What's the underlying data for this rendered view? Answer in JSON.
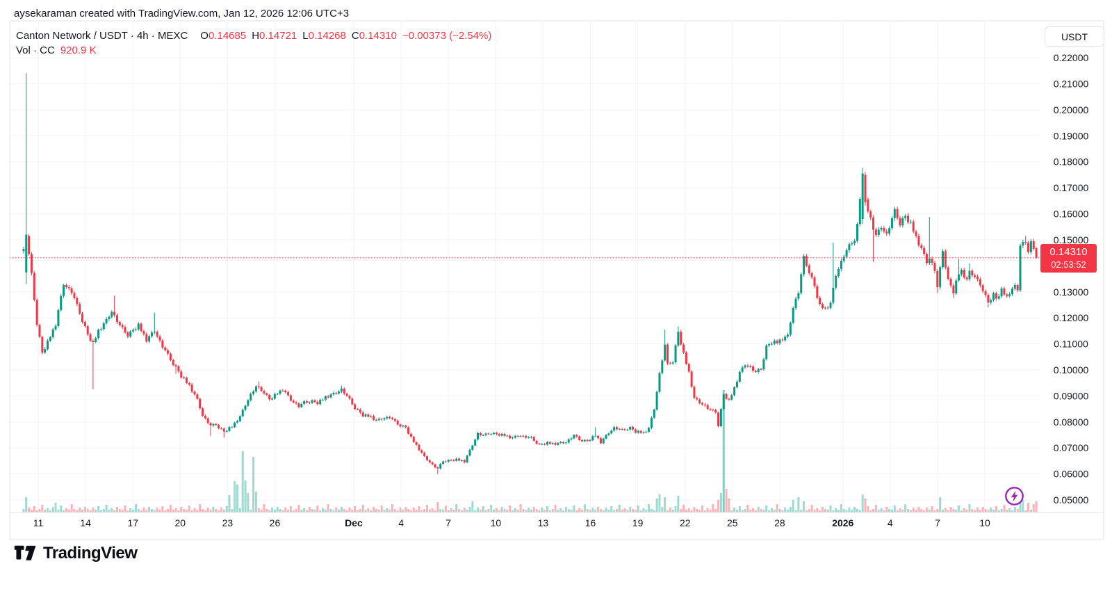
{
  "meta": {
    "creator_line": "aysekaraman created with TradingView.com, Jan 12, 2026 12:06 UTC+3"
  },
  "legend": {
    "symbol": "Canton Network / USDT · 4h · MEXC",
    "o_label": "O",
    "o_value": "0.14685",
    "h_label": "H",
    "h_value": "0.14721",
    "l_label": "L",
    "l_value": "0.14268",
    "c_label": "C",
    "c_value": "0.14310",
    "change": "−0.00373 (−2.54%)",
    "vol_label": "Vol · CC",
    "vol_value": "920.9 K"
  },
  "axis": {
    "currency_label": "USDT"
  },
  "price_line": {
    "value": 0.1431,
    "price": "0.14310",
    "countdown": "02:53:52"
  },
  "logo": {
    "text": "TradingView"
  },
  "colors": {
    "up": "#089981",
    "down": "#f23645",
    "text": "#131722",
    "grid": "#f0f3fa",
    "border": "#e0e3eb",
    "badge": "#f23645",
    "flash": "#9c27b0"
  },
  "chart_data": {
    "type": "candlestick",
    "symbol": "Canton Network / USDT",
    "interval": "4h",
    "exchange": "MEXC",
    "last_candle": {
      "open": 0.14685,
      "high": 0.14721,
      "low": 0.14268,
      "close": 0.1431
    },
    "change": -0.00373,
    "change_pct": -2.54,
    "volume_current": "920.9 K",
    "n": 380,
    "ylim": [
      0.0452,
      0.2342
    ],
    "yticks": [
      {
        "v": 0.22,
        "label": "0.22000"
      },
      {
        "v": 0.21,
        "label": "0.21000"
      },
      {
        "v": 0.2,
        "label": "0.20000"
      },
      {
        "v": 0.19,
        "label": "0.19000"
      },
      {
        "v": 0.18,
        "label": "0.18000"
      },
      {
        "v": 0.17,
        "label": "0.17000"
      },
      {
        "v": 0.16,
        "label": "0.16000"
      },
      {
        "v": 0.15,
        "label": "0.15000"
      },
      {
        "v": 0.13,
        "label": "0.13000"
      },
      {
        "v": 0.12,
        "label": "0.12000"
      },
      {
        "v": 0.11,
        "label": "0.11000"
      },
      {
        "v": 0.1,
        "label": "0.10000"
      },
      {
        "v": 0.09,
        "label": "0.09000"
      },
      {
        "v": 0.08,
        "label": "0.08000"
      },
      {
        "v": 0.07,
        "label": "0.07000"
      },
      {
        "v": 0.06,
        "label": "0.06000"
      },
      {
        "v": 0.05,
        "label": "0.05000"
      }
    ],
    "xticks": [
      {
        "label": "11",
        "f": 0.0277
      },
      {
        "label": "14",
        "f": 0.0736
      },
      {
        "label": "17",
        "f": 0.1196
      },
      {
        "label": "20",
        "f": 0.1655
      },
      {
        "label": "23",
        "f": 0.2115
      },
      {
        "label": "26",
        "f": 0.2574
      },
      {
        "label": "Dec",
        "f": 0.334,
        "bold": true
      },
      {
        "label": "4",
        "f": 0.38
      },
      {
        "label": "7",
        "f": 0.4259
      },
      {
        "label": "10",
        "f": 0.4719
      },
      {
        "label": "13",
        "f": 0.5178
      },
      {
        "label": "16",
        "f": 0.5638
      },
      {
        "label": "19",
        "f": 0.6097
      },
      {
        "label": "22",
        "f": 0.6557
      },
      {
        "label": "25",
        "f": 0.7016
      },
      {
        "label": "28",
        "f": 0.7476
      },
      {
        "label": "2026",
        "f": 0.8089,
        "bold": true
      },
      {
        "label": "4",
        "f": 0.8548
      },
      {
        "label": "7",
        "f": 0.9008
      },
      {
        "label": "10",
        "f": 0.9467
      }
    ],
    "anchors": [
      [
        0,
        0.146
      ],
      [
        1,
        0.152
      ],
      [
        3,
        0.1365
      ],
      [
        5,
        0.118
      ],
      [
        7,
        0.1065
      ],
      [
        9,
        0.1105
      ],
      [
        12,
        0.1175
      ],
      [
        15,
        0.133
      ],
      [
        18,
        0.13
      ],
      [
        21,
        0.122
      ],
      [
        24,
        0.1135
      ],
      [
        26,
        0.11
      ],
      [
        28,
        0.115
      ],
      [
        31,
        0.119
      ],
      [
        33,
        0.1225
      ],
      [
        36,
        0.117
      ],
      [
        39,
        0.1135
      ],
      [
        43,
        0.117
      ],
      [
        46,
        0.1115
      ],
      [
        49,
        0.115
      ],
      [
        52,
        0.109
      ],
      [
        55,
        0.104
      ],
      [
        57,
        0.101
      ],
      [
        59,
        0.0975
      ],
      [
        62,
        0.094
      ],
      [
        65,
        0.0885
      ],
      [
        67,
        0.0825
      ],
      [
        70,
        0.0785
      ],
      [
        72,
        0.079
      ],
      [
        75,
        0.0762
      ],
      [
        78,
        0.0782
      ],
      [
        81,
        0.082
      ],
      [
        83,
        0.0865
      ],
      [
        85,
        0.0905
      ],
      [
        87,
        0.0935
      ],
      [
        90,
        0.0915
      ],
      [
        92,
        0.0885
      ],
      [
        95,
        0.091
      ],
      [
        97,
        0.0925
      ],
      [
        100,
        0.0885
      ],
      [
        103,
        0.086
      ],
      [
        105,
        0.0875
      ],
      [
        108,
        0.088
      ],
      [
        110,
        0.0872
      ],
      [
        113,
        0.0895
      ],
      [
        117,
        0.0912
      ],
      [
        119,
        0.0925
      ],
      [
        122,
        0.0885
      ],
      [
        124,
        0.0855
      ],
      [
        127,
        0.0825
      ],
      [
        130,
        0.082
      ],
      [
        132,
        0.0805
      ],
      [
        135,
        0.0815
      ],
      [
        137,
        0.0818
      ],
      [
        140,
        0.0792
      ],
      [
        143,
        0.0778
      ],
      [
        145,
        0.0738
      ],
      [
        148,
        0.0695
      ],
      [
        150,
        0.0665
      ],
      [
        153,
        0.0635
      ],
      [
        155,
        0.062
      ],
      [
        157,
        0.065
      ],
      [
        160,
        0.0652
      ],
      [
        162,
        0.0655
      ],
      [
        165,
        0.0648
      ],
      [
        167,
        0.069
      ],
      [
        170,
        0.0755
      ],
      [
        172,
        0.0748
      ],
      [
        175,
        0.0758
      ],
      [
        177,
        0.0752
      ],
      [
        180,
        0.0748
      ],
      [
        183,
        0.0738
      ],
      [
        185,
        0.0748
      ],
      [
        188,
        0.0742
      ],
      [
        190,
        0.0738
      ],
      [
        193,
        0.0712
      ],
      [
        196,
        0.0718
      ],
      [
        199,
        0.0716
      ],
      [
        203,
        0.0722
      ],
      [
        206,
        0.0748
      ],
      [
        208,
        0.0732
      ],
      [
        211,
        0.0726
      ],
      [
        214,
        0.0748
      ],
      [
        216,
        0.0722
      ],
      [
        219,
        0.0758
      ],
      [
        221,
        0.0778
      ],
      [
        224,
        0.0768
      ],
      [
        227,
        0.0778
      ],
      [
        229,
        0.0762
      ],
      [
        232,
        0.0758
      ],
      [
        234,
        0.0775
      ],
      [
        236,
        0.085
      ],
      [
        238,
        0.0985
      ],
      [
        240,
        0.1095
      ],
      [
        241,
        0.102
      ],
      [
        243,
        0.1035
      ],
      [
        245,
        0.1145
      ],
      [
        247,
        0.106
      ],
      [
        249,
        0.099
      ],
      [
        251,
        0.089
      ],
      [
        253,
        0.0875
      ],
      [
        255,
        0.0862
      ],
      [
        257,
        0.0845
      ],
      [
        259,
        0.0838
      ],
      [
        260,
        0.0788
      ],
      [
        262,
        0.0905
      ],
      [
        264,
        0.088
      ],
      [
        266,
        0.093
      ],
      [
        268,
        0.099
      ],
      [
        270,
        0.102
      ],
      [
        272,
        0.101
      ],
      [
        274,
        0.099
      ],
      [
        276,
        0.1005
      ],
      [
        278,
        0.109
      ],
      [
        280,
        0.1105
      ],
      [
        282,
        0.1105
      ],
      [
        284,
        0.112
      ],
      [
        286,
        0.113
      ],
      [
        288,
        0.124
      ],
      [
        290,
        0.13
      ],
      [
        292,
        0.143
      ],
      [
        294,
        0.138
      ],
      [
        296,
        0.132
      ],
      [
        298,
        0.1245
      ],
      [
        300,
        0.1235
      ],
      [
        302,
        0.1255
      ],
      [
        304,
        0.1365
      ],
      [
        306,
        0.1415
      ],
      [
        307,
        0.144
      ],
      [
        309,
        0.1475
      ],
      [
        311,
        0.1505
      ],
      [
        312,
        0.1555
      ],
      [
        314,
        0.1755
      ],
      [
        315,
        0.1645
      ],
      [
        317,
        0.158
      ],
      [
        319,
        0.1515
      ],
      [
        321,
        0.155
      ],
      [
        323,
        0.152
      ],
      [
        325,
        0.158
      ],
      [
        326,
        0.161
      ],
      [
        328,
        0.1565
      ],
      [
        330,
        0.159
      ],
      [
        332,
        0.156
      ],
      [
        334,
        0.151
      ],
      [
        336,
        0.1465
      ],
      [
        338,
        0.1415
      ],
      [
        339,
        0.143
      ],
      [
        341,
        0.1385
      ],
      [
        342,
        0.1315
      ],
      [
        344,
        0.146
      ],
      [
        346,
        0.1345
      ],
      [
        348,
        0.13
      ],
      [
        350,
        0.137
      ],
      [
        351,
        0.138
      ],
      [
        353,
        0.1345
      ],
      [
        354,
        0.1375
      ],
      [
        356,
        0.136
      ],
      [
        358,
        0.133
      ],
      [
        359,
        0.13
      ],
      [
        361,
        0.1262
      ],
      [
        363,
        0.129
      ],
      [
        364,
        0.1272
      ],
      [
        366,
        0.1305
      ],
      [
        368,
        0.128
      ],
      [
        369,
        0.1298
      ],
      [
        371,
        0.132
      ],
      [
        372,
        0.131
      ],
      [
        373,
        0.148
      ],
      [
        375,
        0.1495
      ],
      [
        376,
        0.145
      ],
      [
        377,
        0.1487
      ],
      [
        378,
        0.1469
      ],
      [
        379,
        0.1431
      ]
    ],
    "wick_overrides": [
      [
        26,
        0.0925,
        "l"
      ],
      [
        34,
        0.1285,
        "h"
      ],
      [
        49,
        0.122,
        "h"
      ],
      [
        57,
        0.0985,
        "l"
      ],
      [
        70,
        0.0745,
        "l"
      ],
      [
        75,
        0.074,
        "l"
      ],
      [
        88,
        0.0955,
        "h"
      ],
      [
        119,
        0.094,
        "h"
      ],
      [
        155,
        0.06,
        "l"
      ],
      [
        214,
        0.078,
        "h"
      ],
      [
        240,
        0.1155,
        "h"
      ],
      [
        245,
        0.1168,
        "h"
      ],
      [
        303,
        0.149,
        "h"
      ],
      [
        318,
        0.1415,
        "l"
      ],
      [
        339,
        0.1588,
        "h"
      ],
      [
        342,
        0.1295,
        "l"
      ],
      [
        348,
        0.1276,
        "l"
      ],
      [
        350,
        0.1428,
        "h"
      ],
      [
        354,
        0.141,
        "h"
      ],
      [
        361,
        0.124,
        "l"
      ],
      [
        375,
        0.1515,
        "h"
      ]
    ],
    "candle_overrides": [
      [
        1,
        0.1375,
        0.2141,
        0.133,
        0.152
      ],
      [
        314,
        0.158,
        0.1776,
        0.156,
        0.1755
      ],
      [
        315,
        0.175,
        0.1762,
        0.1632,
        0.1645
      ],
      [
        379,
        0.14685,
        0.14721,
        0.14268,
        0.1431
      ]
    ],
    "wiggle": [
      0.006,
      -0.007,
      0.004,
      0.011,
      -0.005,
      -0.012,
      0.008,
      0.003,
      -0.009,
      0.013,
      -0.004,
      0.007,
      -0.011,
      0.005,
      0.009,
      -0.006,
      -0.003
    ],
    "volume_base": [
      5,
      3,
      7,
      4,
      9,
      3,
      5,
      11,
      4,
      6,
      3,
      8,
      5,
      4,
      10,
      3,
      6,
      4,
      12,
      5,
      3,
      7,
      4,
      8
    ],
    "volume_spikes": [
      [
        1,
        22
      ],
      [
        12,
        14
      ],
      [
        77,
        25
      ],
      [
        79,
        45
      ],
      [
        80,
        40
      ],
      [
        82,
        88
      ],
      [
        83,
        46
      ],
      [
        84,
        28
      ],
      [
        86,
        80
      ],
      [
        87,
        30
      ],
      [
        155,
        15
      ],
      [
        168,
        16
      ],
      [
        237,
        20
      ],
      [
        238,
        26
      ],
      [
        240,
        22
      ],
      [
        245,
        24
      ],
      [
        260,
        18
      ],
      [
        261,
        28
      ],
      [
        262,
        176
      ],
      [
        263,
        34
      ],
      [
        264,
        20
      ],
      [
        288,
        18
      ],
      [
        290,
        22
      ],
      [
        292,
        16
      ],
      [
        314,
        26
      ],
      [
        315,
        20
      ],
      [
        343,
        22
      ],
      [
        373,
        26
      ],
      [
        374,
        18
      ],
      [
        376,
        14
      ],
      [
        379,
        16
      ]
    ]
  }
}
